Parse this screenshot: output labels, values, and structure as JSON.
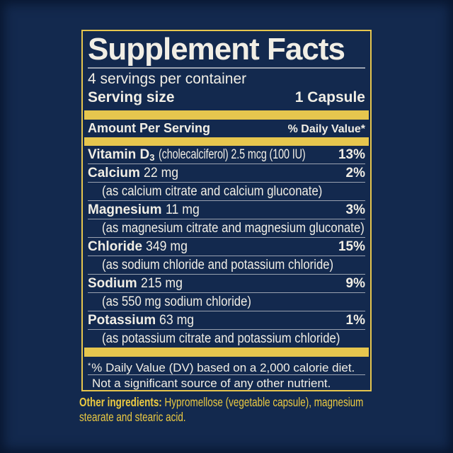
{
  "colors": {
    "background": "#13294e",
    "gold": "#e6c64e",
    "cream": "#f1eee5",
    "hairline": "#9aa2b0",
    "yellow": "#ecca41"
  },
  "panel": {
    "title": "Supplement Facts",
    "servings_per_container": "4 servings per container",
    "serving_size_label": "Serving size",
    "serving_size_value": "1 Capsule",
    "amount_per_serving_label": "Amount Per Serving",
    "daily_value_header": "% Daily Value*",
    "nutrients": [
      {
        "name": "Vitamin D",
        "name_subscript": "3",
        "detail": "(cholecalciferol) 2.5 mcg (100 IU)",
        "dv": "13%",
        "source": ""
      },
      {
        "name": "Calcium",
        "detail": "22 mg",
        "dv": "2%",
        "source": "(as calcium citrate and calcium gluconate)"
      },
      {
        "name": "Magnesium",
        "detail": "11 mg",
        "dv": "3%",
        "source": "(as magnesium citrate and magnesium gluconate)"
      },
      {
        "name": "Chloride",
        "detail": "349 mg",
        "dv": "15%",
        "source": "(as sodium chloride and potassium chloride)"
      },
      {
        "name": "Sodium",
        "detail": "215 mg",
        "dv": "9%",
        "source": "(as 550 mg sodium chloride)"
      },
      {
        "name": "Potassium",
        "detail": "63 mg",
        "dv": "1%",
        "source": "(as potassium citrate and potassium chloride)"
      }
    ],
    "footnote_marker": "*",
    "footnotes": [
      "% Daily Value (DV) based on a 2,000 calorie diet.",
      "Not a significant source of any other nutrient."
    ]
  },
  "other_ingredients": {
    "label": "Other ingredients:",
    "text": " Hypromellose (vegetable capsule), magnesium stearate and stearic acid."
  }
}
